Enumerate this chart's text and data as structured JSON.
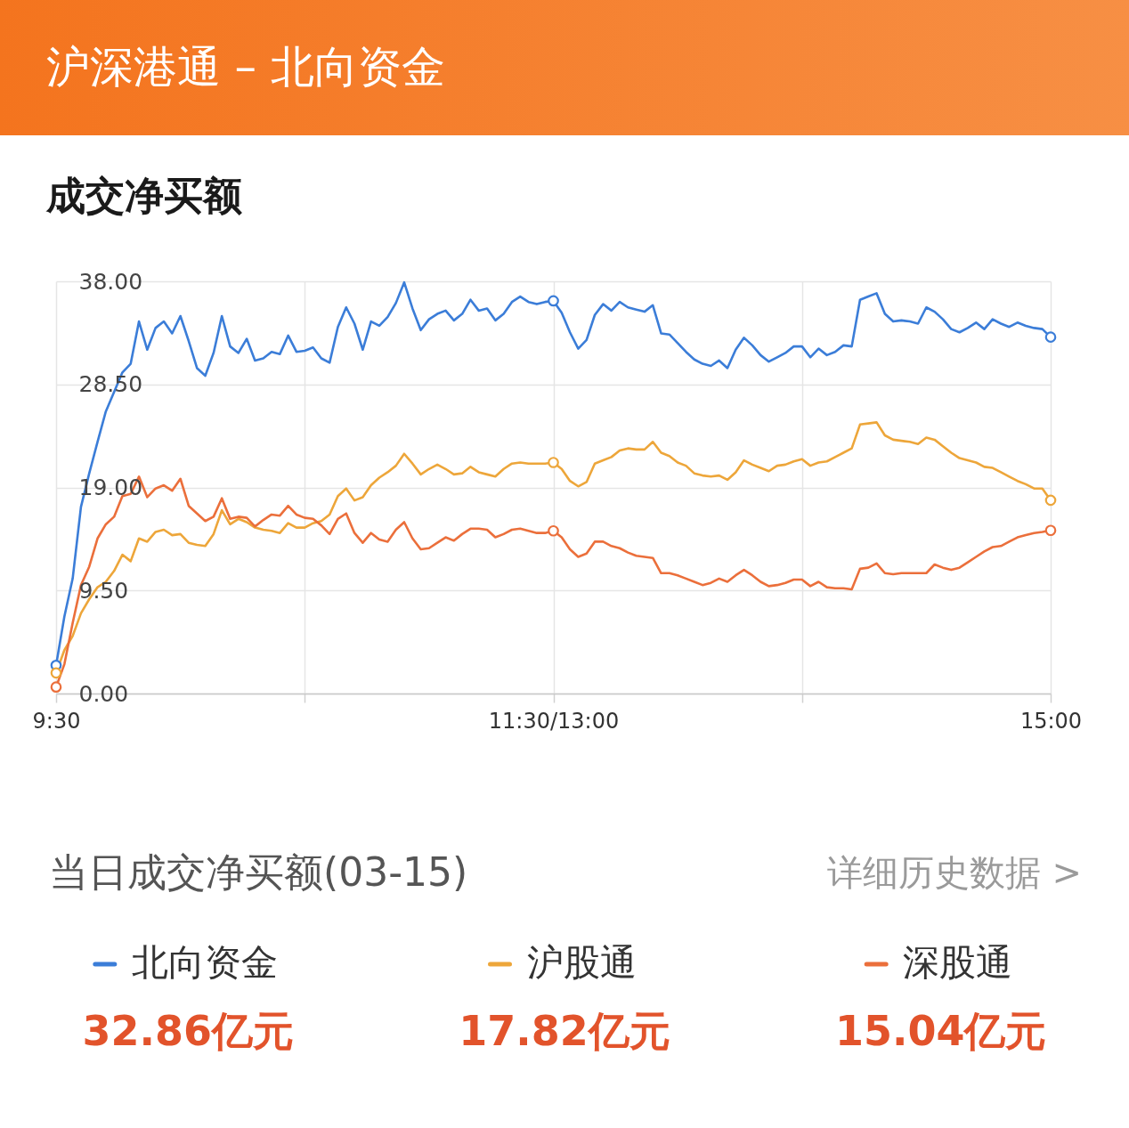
{
  "chart_data": {
    "type": "line",
    "title": "沪深港通 – 北向资金",
    "subtitle": "成交净买额",
    "categories": [
      "9:30",
      null,
      null,
      null,
      null,
      null,
      null,
      null,
      null,
      null,
      null,
      null,
      null,
      null,
      null,
      null,
      null,
      null,
      null,
      null,
      null,
      null,
      null,
      null,
      null,
      null,
      null,
      null,
      null,
      null,
      null,
      null,
      null,
      null,
      null,
      null,
      null,
      null,
      null,
      null,
      null,
      null,
      null,
      null,
      null,
      null,
      null,
      null,
      null,
      null,
      null,
      null,
      null,
      null,
      null,
      null,
      null,
      null,
      null,
      null,
      "11:30/13:00",
      null,
      null,
      null,
      null,
      null,
      null,
      null,
      null,
      null,
      null,
      null,
      null,
      null,
      null,
      null,
      null,
      null,
      null,
      null,
      null,
      null,
      null,
      null,
      null,
      null,
      null,
      null,
      null,
      null,
      null,
      null,
      null,
      null,
      null,
      null,
      null,
      null,
      null,
      null,
      null,
      null,
      null,
      null,
      null,
      null,
      null,
      null,
      null,
      null,
      null,
      null,
      null,
      null,
      null,
      null,
      null,
      null,
      null,
      null,
      "15:00"
    ],
    "ylim": [
      0,
      38
    ],
    "yticks": [
      {
        "value": 0,
        "label": "0.00"
      },
      {
        "value": 9.5,
        "label": "9.50"
      },
      {
        "value": 19,
        "label": "19.00"
      },
      {
        "value": 28.5,
        "label": "28.50"
      },
      {
        "value": 38,
        "label": "38.00"
      }
    ],
    "grid": true,
    "legend": "bottom",
    "series": [
      {
        "name": "北向资金",
        "color": "#3b7dd8",
        "values": [
          2.6,
          7.1,
          10.6,
          17.2,
          20.3,
          23.2,
          26.0,
          27.8,
          29.6,
          30.4,
          34.3,
          31.7,
          33.7,
          34.3,
          33.2,
          34.8,
          32.5,
          30.0,
          29.3,
          31.4,
          34.8,
          32.0,
          31.4,
          32.7,
          30.7,
          30.9,
          31.5,
          31.3,
          33.0,
          31.5,
          31.6,
          31.9,
          30.9,
          30.5,
          33.8,
          35.6,
          34.1,
          31.7,
          34.3,
          33.9,
          34.7,
          36.0,
          37.9,
          35.5,
          33.5,
          34.5,
          35.0,
          35.3,
          34.4,
          35.0,
          36.3,
          35.3,
          35.5,
          34.4,
          35.0,
          36.1,
          36.6,
          36.1,
          35.9,
          36.1,
          36.2,
          35.1,
          33.3,
          31.8,
          32.6,
          34.9,
          35.9,
          35.3,
          36.1,
          35.6,
          35.4,
          35.2,
          35.8,
          33.2,
          33.1,
          32.3,
          31.5,
          30.8,
          30.4,
          30.2,
          30.7,
          30.0,
          31.7,
          32.8,
          32.1,
          31.2,
          30.6,
          31.0,
          31.4,
          32.0,
          32.0,
          31.0,
          31.8,
          31.2,
          31.5,
          32.1,
          32.0,
          36.3,
          36.6,
          36.9,
          35.0,
          34.3,
          34.4,
          34.3,
          34.1,
          35.6,
          35.2,
          34.5,
          33.6,
          33.3,
          33.7,
          34.2,
          33.6,
          34.5,
          34.1,
          33.8,
          34.2,
          33.9,
          33.7,
          33.6,
          32.86
        ]
      },
      {
        "name": "沪股通",
        "color": "#eda63a",
        "values": [
          1.9,
          4.0,
          5.3,
          7.4,
          8.7,
          9.8,
          10.3,
          11.3,
          12.8,
          12.2,
          14.3,
          14.0,
          14.9,
          15.1,
          14.6,
          14.7,
          13.9,
          13.7,
          13.6,
          14.7,
          16.9,
          15.6,
          16.1,
          15.8,
          15.3,
          15.1,
          15.0,
          14.8,
          15.7,
          15.3,
          15.3,
          15.7,
          15.9,
          16.5,
          18.2,
          18.9,
          17.8,
          18.1,
          19.2,
          19.9,
          20.4,
          21.0,
          22.1,
          21.2,
          20.2,
          20.7,
          21.1,
          20.7,
          20.2,
          20.3,
          20.9,
          20.4,
          20.2,
          20.0,
          20.7,
          21.2,
          21.3,
          21.2,
          21.2,
          21.2,
          21.3,
          20.7,
          19.6,
          19.1,
          19.5,
          21.2,
          21.5,
          21.8,
          22.4,
          22.6,
          22.5,
          22.5,
          23.2,
          22.2,
          21.9,
          21.3,
          21.0,
          20.3,
          20.1,
          20.0,
          20.1,
          19.7,
          20.4,
          21.5,
          21.1,
          20.8,
          20.5,
          21.0,
          21.1,
          21.4,
          21.6,
          21.0,
          21.3,
          21.4,
          21.8,
          22.2,
          22.6,
          24.8,
          24.9,
          25.0,
          23.8,
          23.4,
          23.3,
          23.2,
          23.0,
          23.6,
          23.4,
          22.8,
          22.2,
          21.7,
          21.5,
          21.3,
          20.9,
          20.8,
          20.4,
          20.0,
          19.6,
          19.3,
          18.9,
          18.9,
          17.82
        ]
      },
      {
        "name": "深股通",
        "color": "#eb6f3b",
        "values": [
          0.6,
          2.7,
          6.5,
          10.0,
          11.7,
          14.3,
          15.6,
          16.3,
          18.2,
          18.4,
          20.0,
          18.1,
          18.9,
          19.2,
          18.7,
          19.8,
          17.3,
          16.6,
          15.9,
          16.3,
          18.0,
          16.1,
          16.3,
          16.2,
          15.4,
          16.0,
          16.5,
          16.4,
          17.3,
          16.5,
          16.2,
          16.1,
          15.5,
          14.7,
          16.1,
          16.6,
          14.8,
          13.9,
          14.8,
          14.2,
          14.0,
          15.1,
          15.8,
          14.3,
          13.3,
          13.4,
          13.9,
          14.4,
          14.1,
          14.7,
          15.2,
          15.2,
          15.1,
          14.4,
          14.7,
          15.1,
          15.2,
          15.0,
          14.8,
          14.8,
          15.0,
          14.4,
          13.3,
          12.6,
          12.9,
          14.0,
          14.0,
          13.6,
          13.4,
          13.0,
          12.7,
          12.6,
          12.5,
          11.1,
          11.1,
          10.9,
          10.6,
          10.3,
          10.0,
          10.2,
          10.6,
          10.3,
          10.9,
          11.4,
          10.9,
          10.3,
          9.9,
          10.0,
          10.2,
          10.5,
          10.5,
          9.9,
          10.3,
          9.8,
          9.7,
          9.7,
          9.6,
          11.5,
          11.6,
          12.0,
          11.1,
          11.0,
          11.1,
          11.1,
          11.1,
          11.1,
          11.9,
          11.6,
          11.4,
          11.6,
          12.1,
          12.6,
          13.1,
          13.5,
          13.6,
          14.0,
          14.4,
          14.6,
          14.8,
          14.9,
          15.04
        ]
      },
      {
        "type": "scatter",
        "marker": "circle",
        "color": "#3b7dd8",
        "values": [
          2.6,
          null,
          null,
          null,
          null,
          null,
          null,
          null,
          null,
          null,
          null,
          null,
          null,
          null,
          null,
          null,
          null,
          null,
          null,
          null,
          null,
          null,
          null,
          null,
          null,
          null,
          null,
          null,
          null,
          null,
          null,
          null,
          null,
          null,
          null,
          null,
          null,
          null,
          null,
          null,
          null,
          null,
          null,
          null,
          null,
          null,
          null,
          null,
          null,
          null,
          null,
          null,
          null,
          null,
          null,
          null,
          null,
          null,
          null,
          null,
          36.2,
          null,
          null,
          null,
          null,
          null,
          null,
          null,
          null,
          null,
          null,
          null,
          null,
          null,
          null,
          null,
          null,
          null,
          null,
          null,
          null,
          null,
          null,
          null,
          null,
          null,
          null,
          null,
          null,
          null,
          null,
          null,
          null,
          null,
          null,
          null,
          null,
          null,
          null,
          null,
          null,
          null,
          null,
          null,
          null,
          null,
          null,
          null,
          null,
          null,
          null,
          null,
          null,
          null,
          null,
          null,
          null,
          null,
          null,
          null,
          32.86
        ]
      },
      {
        "type": "scatter",
        "marker": "circle",
        "color": "#eda63a",
        "values": [
          1.9,
          null,
          null,
          null,
          null,
          null,
          null,
          null,
          null,
          null,
          null,
          null,
          null,
          null,
          null,
          null,
          null,
          null,
          null,
          null,
          null,
          null,
          null,
          null,
          null,
          null,
          null,
          null,
          null,
          null,
          null,
          null,
          null,
          null,
          null,
          null,
          null,
          null,
          null,
          null,
          null,
          null,
          null,
          null,
          null,
          null,
          null,
          null,
          null,
          null,
          null,
          null,
          null,
          null,
          null,
          null,
          null,
          null,
          null,
          null,
          21.3,
          null,
          null,
          null,
          null,
          null,
          null,
          null,
          null,
          null,
          null,
          null,
          null,
          null,
          null,
          null,
          null,
          null,
          null,
          null,
          null,
          null,
          null,
          null,
          null,
          null,
          null,
          null,
          null,
          null,
          null,
          null,
          null,
          null,
          null,
          null,
          null,
          null,
          null,
          null,
          null,
          null,
          null,
          null,
          null,
          null,
          null,
          null,
          null,
          null,
          null,
          null,
          null,
          null,
          null,
          null,
          null,
          null,
          null,
          null,
          17.82
        ]
      },
      {
        "type": "scatter",
        "marker": "circle",
        "color": "#eb6f3b",
        "values": [
          0.6,
          null,
          null,
          null,
          null,
          null,
          null,
          null,
          null,
          null,
          null,
          null,
          null,
          null,
          null,
          null,
          null,
          null,
          null,
          null,
          null,
          null,
          null,
          null,
          null,
          null,
          null,
          null,
          null,
          null,
          null,
          null,
          null,
          null,
          null,
          null,
          null,
          null,
          null,
          null,
          null,
          null,
          null,
          null,
          null,
          null,
          null,
          null,
          null,
          null,
          null,
          null,
          null,
          null,
          null,
          null,
          null,
          null,
          null,
          null,
          15.0,
          null,
          null,
          null,
          null,
          null,
          null,
          null,
          null,
          null,
          null,
          null,
          null,
          null,
          null,
          null,
          null,
          null,
          null,
          null,
          null,
          null,
          null,
          null,
          null,
          null,
          null,
          null,
          null,
          null,
          null,
          null,
          null,
          null,
          null,
          null,
          null,
          null,
          null,
          null,
          null,
          null,
          null,
          null,
          null,
          null,
          null,
          null,
          null,
          null,
          null,
          null,
          null,
          null,
          null,
          null,
          null,
          null,
          null,
          null,
          15.04
        ]
      }
    ],
    "annotations": [
      "当日成交净买额(03-15)",
      "详细历史数据 >",
      "32.86亿元",
      "17.82亿元",
      "15.04亿元"
    ]
  }
}
